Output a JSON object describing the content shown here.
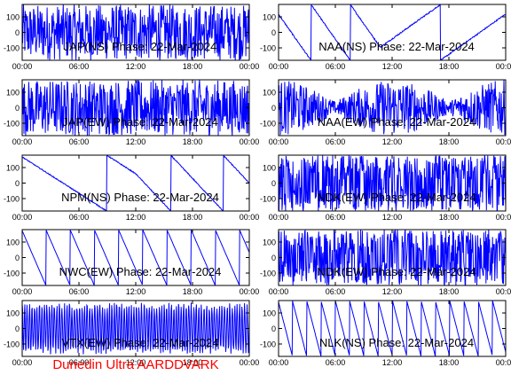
{
  "footer_text": "Dunedin Ultra AARDDVARK",
  "colors": {
    "trace": "#0000ff",
    "axes": "#000000",
    "footer": "#ff0000",
    "background": "#ffffff"
  },
  "chart_data": [
    {
      "type": "line",
      "title": "JAP(NS) Phase: 22-Mar-2024",
      "xticks": [
        "00:00",
        "06:00",
        "12:00",
        "18:00",
        "00:00"
      ],
      "yticks": [
        -100,
        0,
        100
      ],
      "xlim": [
        0,
        24
      ],
      "ylim": [
        -180,
        180
      ],
      "pattern": "dense"
    },
    {
      "type": "line",
      "title": "NAA(NS) Phase: 22-Mar-2024",
      "xticks": [
        "00:00",
        "06:00",
        "12:00",
        "18:00",
        "00:00"
      ],
      "yticks": [
        -100,
        0,
        100
      ],
      "xlim": [
        0,
        24
      ],
      "ylim": [
        -180,
        180
      ],
      "pattern": "wrap"
    },
    {
      "type": "line",
      "title": "JAP(EW) Phase: 22-Mar-2024",
      "xticks": [
        "00:00",
        "06:00",
        "12:00",
        "18:00",
        "00:00"
      ],
      "yticks": [
        -100,
        0,
        100
      ],
      "xlim": [
        0,
        24
      ],
      "ylim": [
        -180,
        180
      ],
      "pattern": "dense"
    },
    {
      "type": "line",
      "title": "NAA(EW) Phase: 22-Mar-2024",
      "xticks": [
        "00:00",
        "06:00",
        "12:00",
        "18:00",
        "00:00"
      ],
      "yticks": [
        -100,
        0,
        100
      ],
      "xlim": [
        0,
        24
      ],
      "ylim": [
        -180,
        180
      ],
      "pattern": "band"
    },
    {
      "type": "line",
      "title": "NPM(NS) Phase: 22-Mar-2024",
      "xticks": [
        "00:00",
        "06:00",
        "12:00",
        "18:00",
        "00:00"
      ],
      "yticks": [
        -100,
        0,
        100
      ],
      "xlim": [
        0,
        24
      ],
      "ylim": [
        -180,
        180
      ],
      "pattern": "drift"
    },
    {
      "type": "line",
      "title": "NDK(EW) Phase: 22-Mar-2024",
      "xticks": [
        "00:00",
        "06:00",
        "12:00",
        "18:00",
        "00:00"
      ],
      "yticks": [
        -100,
        0,
        100
      ],
      "xlim": [
        0,
        24
      ],
      "ylim": [
        -180,
        180
      ],
      "pattern": "noisy"
    },
    {
      "type": "line",
      "title": "NWC(EW) Phase: 22-Mar-2024",
      "xticks": [
        "00:00",
        "06:00",
        "12:00",
        "18:00",
        "00:00"
      ],
      "yticks": [
        -100,
        0,
        100
      ],
      "xlim": [
        0,
        24
      ],
      "ylim": [
        -180,
        180
      ],
      "pattern": "sawtooth"
    },
    {
      "type": "line",
      "title": "NDK(EW) Phase: 22-Mar-2024",
      "xticks": [
        "00:00",
        "06:00",
        "12:00",
        "18:00",
        "00:00"
      ],
      "yticks": [
        -100,
        0,
        100
      ],
      "xlim": [
        0,
        24
      ],
      "ylim": [
        -180,
        180
      ],
      "pattern": "noisy"
    },
    {
      "type": "line",
      "title": "VTX(EW) Phase: 22-Mar-2024",
      "xticks": [
        "00:00",
        "06:00",
        "12:00",
        "18:00",
        "00:00"
      ],
      "yticks": [
        -100,
        0,
        100
      ],
      "xlim": [
        0,
        24
      ],
      "ylim": [
        -180,
        180
      ],
      "pattern": "oscillating"
    },
    {
      "type": "line",
      "title": "NLK(NS) Phase: 22-Mar-2024",
      "xticks": [
        "00:00",
        "06:00",
        "12:00",
        "18:00",
        "00:00"
      ],
      "yticks": [
        -100,
        0,
        100
      ],
      "xlim": [
        0,
        24
      ],
      "ylim": [
        -180,
        180
      ],
      "pattern": "fastsaw"
    }
  ]
}
